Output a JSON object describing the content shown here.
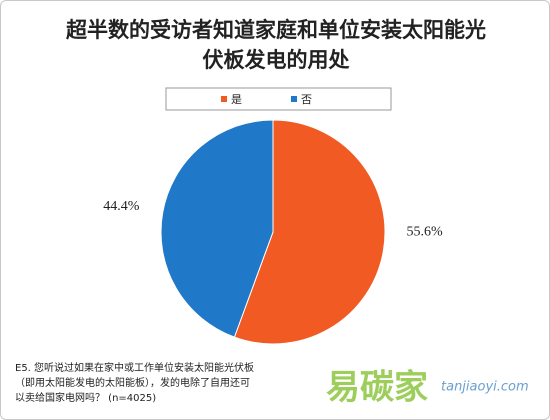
{
  "chart_data": {
    "type": "pie",
    "title": "超半数的受访者知道家庭和单位安装太阳能光伏板发电的用处",
    "categories": [
      "是",
      "否"
    ],
    "values": [
      55.6,
      44.4
    ],
    "value_labels": [
      "55.6%",
      "44.4%"
    ],
    "colors": [
      "#f15a22",
      "#1f78c8"
    ],
    "legend": "top",
    "footnote": [
      "E5. 您听说过如果在家中或工作单位安装太阳能光伏板",
      "（即用太阳能发电的太阳能板），发的电除了自用还可",
      "以卖给国家电网吗？ (n=4025)"
    ],
    "watermark": {
      "brand": "易碳家",
      "site": "tanjiaoyi.com"
    }
  }
}
